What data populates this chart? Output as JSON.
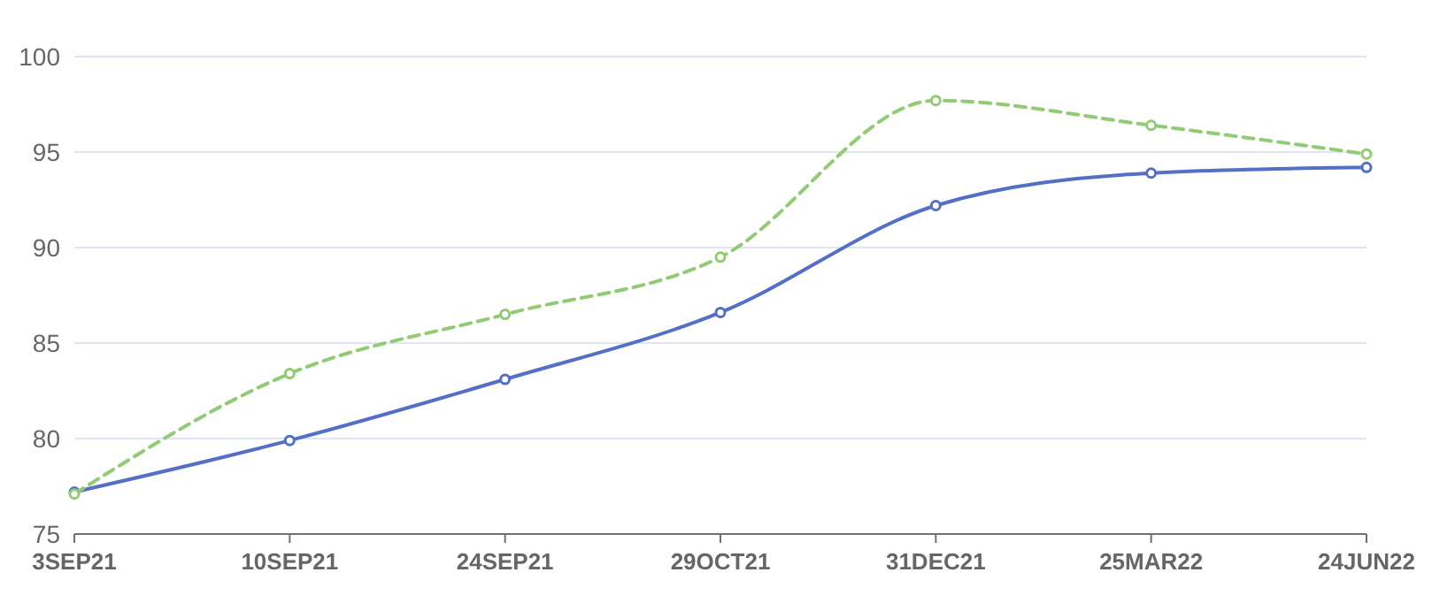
{
  "chart_data": {
    "type": "line",
    "categories": [
      "3SEP21",
      "10SEP21",
      "24SEP21",
      "29OCT21",
      "31DEC21",
      "25MAR22",
      "24JUN22"
    ],
    "series": [
      {
        "color": "#5470c6",
        "line_style": "solid",
        "values": [
          77.2,
          79.9,
          83.1,
          86.6,
          92.2,
          93.9,
          94.2
        ]
      },
      {
        "color": "#91cc75",
        "line_style": "dashed",
        "values": [
          77.1,
          83.4,
          86.5,
          89.5,
          97.7,
          96.4,
          94.9
        ]
      }
    ],
    "ylim": [
      75,
      100
    ],
    "yticks": [
      75,
      80,
      85,
      90,
      95,
      100
    ],
    "grid": "y",
    "marker": "circle"
  }
}
